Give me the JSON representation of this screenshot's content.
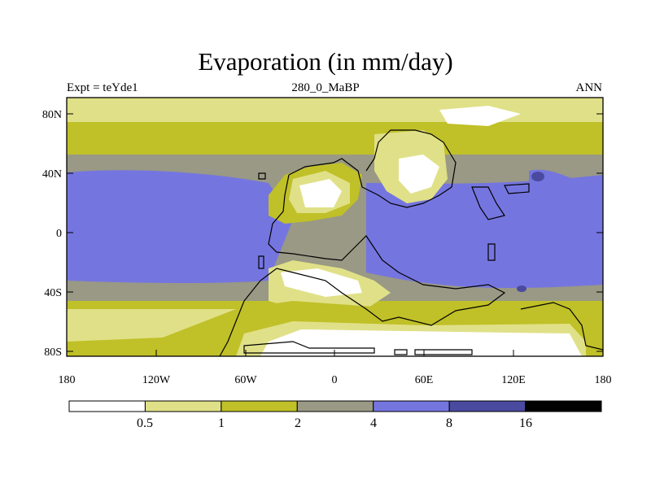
{
  "title": "Evaporation (in mm/day)",
  "subtitle_left": "Expt = teYde1",
  "subtitle_center": "280_0_MaBP",
  "subtitle_right": "ANN",
  "lat_ticks": [
    "80N",
    "40N",
    "0",
    "40S",
    "80S"
  ],
  "lon_ticks": [
    "180",
    "120W",
    "60W",
    "0",
    "60E",
    "120E",
    "180"
  ],
  "colorbar": {
    "colors": [
      "#ffffff",
      "#e0e088",
      "#c0c028",
      "#999985",
      "#7575e0",
      "#4a4aa0",
      "#000000"
    ],
    "labels": [
      "0.5",
      "1",
      "2",
      "4",
      "8",
      "16"
    ]
  }
}
